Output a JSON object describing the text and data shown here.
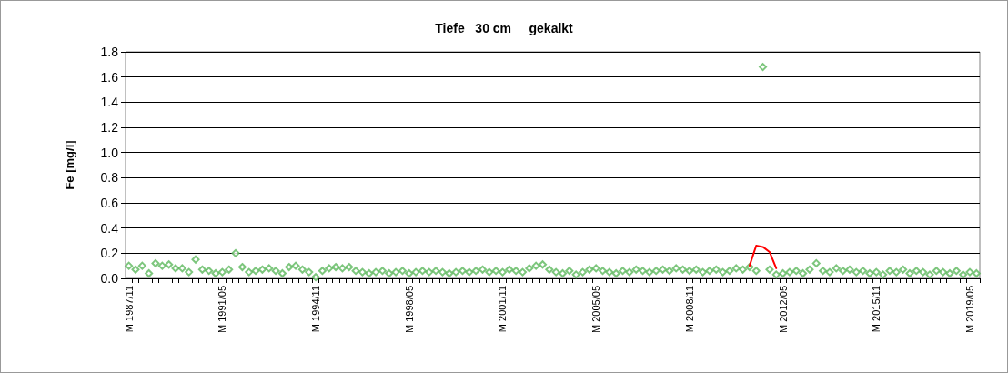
{
  "chart_data": {
    "type": "line",
    "title": "Tiefe   30 cm     gekalkt",
    "ylabel": "Fe [mg/l]",
    "categories": [
      "M 1987/11",
      null,
      null,
      null,
      null,
      null,
      null,
      null,
      null,
      null,
      null,
      null,
      null,
      null,
      "M 1991/05",
      null,
      null,
      null,
      null,
      null,
      null,
      null,
      null,
      null,
      null,
      null,
      null,
      null,
      "M 1994/11",
      null,
      null,
      null,
      null,
      null,
      null,
      null,
      null,
      null,
      null,
      null,
      null,
      null,
      "M 1998/05",
      null,
      null,
      null,
      null,
      null,
      null,
      null,
      null,
      null,
      null,
      null,
      null,
      null,
      "M 2001/11",
      null,
      null,
      null,
      null,
      null,
      null,
      null,
      null,
      null,
      null,
      null,
      null,
      null,
      "M 2005/05",
      null,
      null,
      null,
      null,
      null,
      null,
      null,
      null,
      null,
      null,
      null,
      null,
      null,
      "M 2008/11",
      null,
      null,
      null,
      null,
      null,
      null,
      null,
      null,
      null,
      null,
      null,
      null,
      null,
      "M 2012/05",
      null,
      null,
      null,
      null,
      null,
      null,
      null,
      null,
      null,
      null,
      null,
      null,
      null,
      "M 2015/11",
      null,
      null,
      null,
      null,
      null,
      null,
      null,
      null,
      null,
      null,
      null,
      null,
      null,
      "M 2019/05",
      null
    ],
    "series": [
      {
        "type": "scatter",
        "color": "#5cb85c",
        "marker": "diamond",
        "values": [
          0.1,
          0.07,
          0.1,
          0.04,
          0.12,
          0.1,
          0.11,
          0.08,
          0.08,
          0.05,
          0.15,
          0.07,
          0.06,
          0.04,
          0.05,
          0.07,
          0.2,
          0.09,
          0.05,
          0.06,
          0.07,
          0.08,
          0.06,
          0.04,
          0.09,
          0.1,
          0.07,
          0.05,
          0.01,
          0.06,
          0.08,
          0.09,
          0.08,
          0.09,
          0.06,
          0.05,
          0.04,
          0.05,
          0.06,
          0.04,
          0.05,
          0.06,
          0.04,
          0.05,
          0.06,
          0.05,
          0.06,
          0.05,
          0.04,
          0.05,
          0.06,
          0.05,
          0.06,
          0.07,
          0.05,
          0.06,
          0.05,
          0.07,
          0.06,
          0.05,
          0.08,
          0.1,
          0.11,
          0.07,
          0.05,
          0.04,
          0.06,
          0.03,
          0.05,
          0.07,
          0.08,
          0.06,
          0.05,
          0.04,
          0.06,
          0.05,
          0.07,
          0.06,
          0.05,
          0.06,
          0.07,
          0.06,
          0.08,
          0.07,
          0.06,
          0.07,
          0.05,
          0.06,
          0.07,
          0.05,
          0.06,
          0.08,
          0.07,
          0.09,
          0.06,
          1.68,
          0.07,
          0.03,
          0.04,
          0.05,
          0.06,
          0.04,
          0.07,
          0.12,
          0.06,
          0.05,
          0.08,
          0.06,
          0.07,
          0.05,
          0.06,
          0.04,
          0.05,
          0.03,
          0.06,
          0.05,
          0.07,
          0.04,
          0.06,
          0.05,
          0.03,
          0.06,
          0.05,
          0.04,
          0.06,
          0.03,
          0.05,
          0.04
        ]
      },
      {
        "type": "line",
        "color": "#ff0000",
        "marker": "none",
        "line_style": "solid",
        "values": [
          null,
          null,
          null,
          null,
          null,
          null,
          null,
          null,
          null,
          null,
          null,
          null,
          null,
          null,
          null,
          null,
          null,
          null,
          null,
          null,
          null,
          null,
          null,
          null,
          null,
          null,
          null,
          null,
          null,
          null,
          null,
          null,
          null,
          null,
          null,
          null,
          null,
          null,
          null,
          null,
          null,
          null,
          null,
          null,
          null,
          null,
          null,
          null,
          null,
          null,
          null,
          null,
          null,
          null,
          null,
          null,
          null,
          null,
          null,
          null,
          null,
          null,
          null,
          null,
          null,
          null,
          null,
          null,
          null,
          null,
          null,
          null,
          null,
          null,
          null,
          null,
          null,
          null,
          null,
          null,
          null,
          null,
          null,
          null,
          null,
          null,
          null,
          null,
          null,
          null,
          null,
          null,
          null,
          0.1,
          0.26,
          0.25,
          0.21,
          0.08,
          null,
          null,
          null,
          null,
          null,
          null,
          null,
          null,
          null,
          null,
          null,
          null,
          null,
          null,
          null,
          null,
          null,
          null,
          null,
          null,
          null,
          null,
          null,
          null,
          null,
          null,
          null,
          null,
          null,
          null
        ]
      }
    ],
    "ylim": [
      0,
      1.8
    ],
    "yticks": [
      {
        "value": 0,
        "label": "0.0"
      },
      {
        "value": 0.2,
        "label": "0.2"
      },
      {
        "value": 0.4,
        "label": "0.4"
      },
      {
        "value": 0.6,
        "label": "0.6"
      },
      {
        "value": 0.8,
        "label": "0.8"
      },
      {
        "value": 1,
        "label": "1.0"
      },
      {
        "value": 1.2,
        "label": "1.2"
      },
      {
        "value": 1.4,
        "label": "1.4"
      },
      {
        "value": 1.6,
        "label": "1.6"
      },
      {
        "value": 1.8,
        "label": "1.8"
      }
    ],
    "grid": "y"
  }
}
